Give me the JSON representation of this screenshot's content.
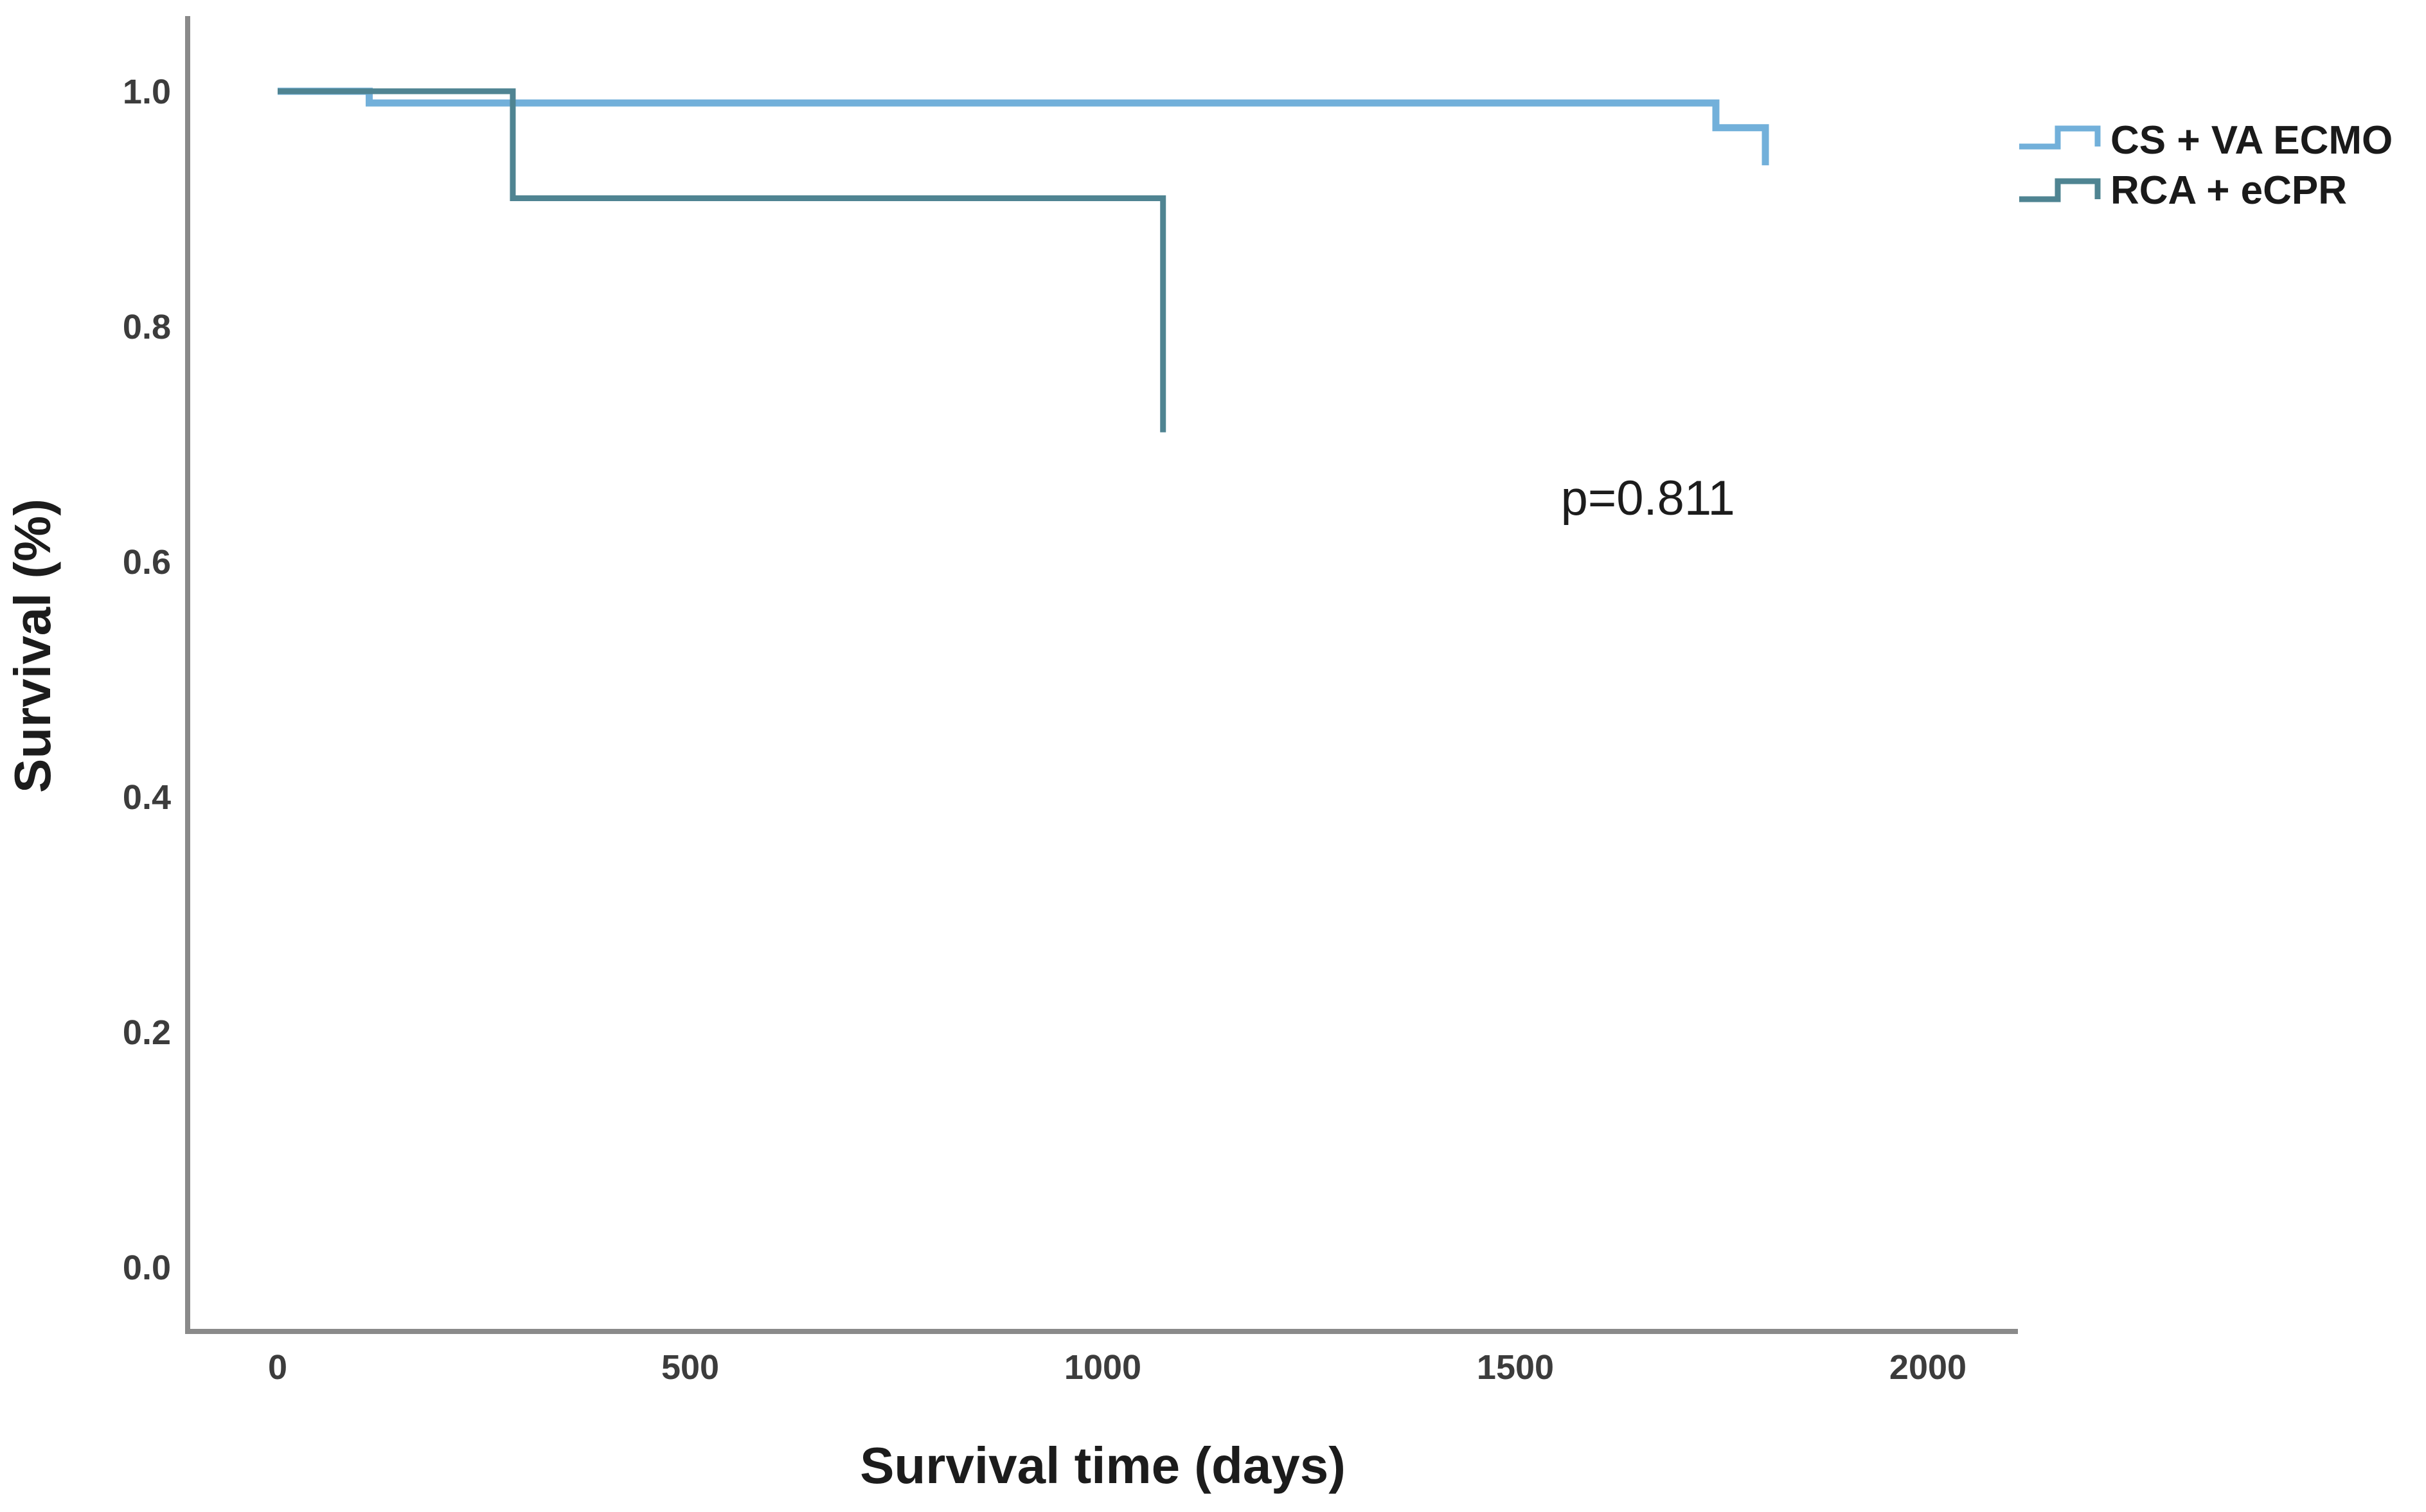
{
  "figure": {
    "background_color": "#ffffff",
    "axis_color": "#8a8a8a",
    "text_color": "#1c1c1c"
  },
  "chart_data": {
    "type": "line",
    "variant": "kaplan-meier-step",
    "title": "",
    "xlabel": "Survival time (days)",
    "ylabel": "Survival (%)",
    "xlim": [
      0,
      2110
    ],
    "ylim": [
      0.0,
      1.0
    ],
    "x_ticks": [
      "0",
      "500",
      "1000",
      "1500",
      "2000"
    ],
    "y_ticks": [
      "0.0",
      "0.2",
      "0.4",
      "0.6",
      "0.8",
      "1.0"
    ],
    "grid": false,
    "legend": {
      "position": "top-right-outside",
      "icon": "step-line-icon"
    },
    "annotation": {
      "text": "p=0.811",
      "x_days": 1555,
      "y_survival": 0.64
    },
    "series": [
      {
        "name": "CS + VA ECMO",
        "color": "#72b0da",
        "steps_days_survival": [
          [
            0,
            1.0
          ],
          [
            111,
            0.99
          ],
          [
            1743,
            0.969
          ],
          [
            1803,
            0.937
          ]
        ]
      },
      {
        "name": "RCA + eCPR",
        "color": "#4f8492",
        "steps_days_survival": [
          [
            0,
            1.0
          ],
          [
            285,
            0.909
          ],
          [
            1073,
            0.71
          ]
        ]
      }
    ]
  }
}
